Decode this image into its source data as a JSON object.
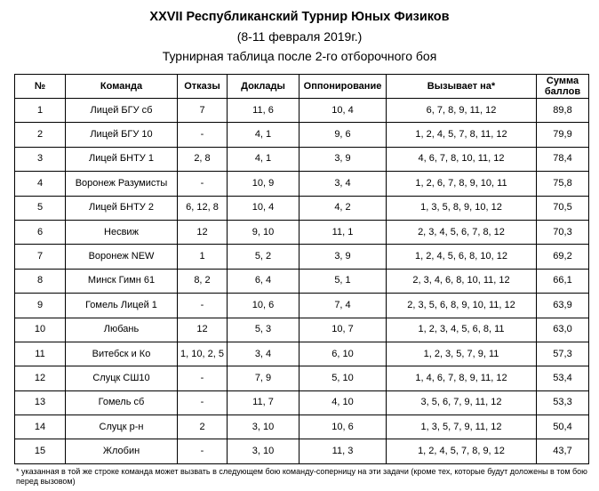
{
  "title": {
    "line1": "XXVII Республиканский Турнир Юных Физиков",
    "line2": "(8-11 февраля 2019г.)",
    "line3": "Турнирная таблица после 2-го отборочного боя"
  },
  "table": {
    "headers": {
      "num": "№",
      "team": "Команда",
      "refusals": "Отказы",
      "reports": "Доклады",
      "opposition": "Оппонирование",
      "challenges": "Вызывает на*",
      "sum_line1": "Сумма",
      "sum_line2": "баллов"
    },
    "rows": [
      {
        "num": "1",
        "team": "Лицей БГУ сб",
        "refusals": "7",
        "reports": "11, 6",
        "opposition": "10, 4",
        "challenges": "6, 7, 8, 9, 11, 12",
        "sum": "89,8"
      },
      {
        "num": "2",
        "team": "Лицей БГУ 10",
        "refusals": "-",
        "reports": "4, 1",
        "opposition": "9, 6",
        "challenges": "1, 2, 4, 5, 7, 8, 11, 12",
        "sum": "79,9"
      },
      {
        "num": "3",
        "team": "Лицей БНТУ 1",
        "refusals": "2, 8",
        "reports": "4, 1",
        "opposition": "3, 9",
        "challenges": "4, 6, 7, 8, 10, 11, 12",
        "sum": "78,4"
      },
      {
        "num": "4",
        "team": "Воронеж Разумисты",
        "refusals": "-",
        "reports": "10, 9",
        "opposition": "3, 4",
        "challenges": "1, 2, 6, 7, 8, 9, 10, 11",
        "sum": "75,8"
      },
      {
        "num": "5",
        "team": "Лицей БНТУ 2",
        "refusals": "6, 12, 8",
        "reports": "10, 4",
        "opposition": "4, 2",
        "challenges": "1, 3, 5, 8, 9, 10, 12",
        "sum": "70,5"
      },
      {
        "num": "6",
        "team": "Несвиж",
        "refusals": "12",
        "reports": "9, 10",
        "opposition": "11, 1",
        "challenges": "2, 3, 4, 5, 6, 7, 8, 12",
        "sum": "70,3"
      },
      {
        "num": "7",
        "team": "Воронеж NEW",
        "refusals": "1",
        "reports": "5, 2",
        "opposition": "3, 9",
        "challenges": "1, 2, 4, 5, 6, 8, 10, 12",
        "sum": "69,2"
      },
      {
        "num": "8",
        "team": "Минск Гимн 61",
        "refusals": "8, 2",
        "reports": "6, 4",
        "opposition": "5, 1",
        "challenges": "2, 3, 4, 6, 8, 10, 11, 12",
        "sum": "66,1"
      },
      {
        "num": "9",
        "team": "Гомель Лицей 1",
        "refusals": "-",
        "reports": "10, 6",
        "opposition": "7, 4",
        "challenges": "2, 3, 5, 6, 8, 9, 10, 11, 12",
        "sum": "63,9"
      },
      {
        "num": "10",
        "team": "Любань",
        "refusals": "12",
        "reports": "5, 3",
        "opposition": "10, 7",
        "challenges": "1, 2, 3, 4, 5, 6, 8, 11",
        "sum": "63,0"
      },
      {
        "num": "11",
        "team": "Витебск и Ко",
        "refusals": "1, 10, 2, 5",
        "reports": "3, 4",
        "opposition": "6, 10",
        "challenges": "1, 2, 3, 5, 7, 9, 11",
        "sum": "57,3"
      },
      {
        "num": "12",
        "team": "Слуцк СШ10",
        "refusals": "-",
        "reports": "7, 9",
        "opposition": "5, 10",
        "challenges": "1, 4, 6, 7, 8, 9, 11, 12",
        "sum": "53,4"
      },
      {
        "num": "13",
        "team": "Гомель сб",
        "refusals": "-",
        "reports": "11, 7",
        "opposition": "4, 10",
        "challenges": "3, 5, 6, 7, 9, 11, 12",
        "sum": "53,3"
      },
      {
        "num": "14",
        "team": "Слуцк р-н",
        "refusals": "2",
        "reports": "3, 10",
        "opposition": "10, 6",
        "challenges": "1, 3, 5, 7, 9, 11, 12",
        "sum": "50,4"
      },
      {
        "num": "15",
        "team": "Жлобин",
        "refusals": "-",
        "reports": "3, 10",
        "opposition": "11, 3",
        "challenges": "1, 2, 4, 5, 7, 8, 9, 12",
        "sum": "43,7"
      }
    ]
  },
  "footnote": "* указанная в той же строке команда может вызвать в следующем бою команду-соперницу на эти задачи (кроме тех, которые будут доложены в том бою перед вызовом)"
}
